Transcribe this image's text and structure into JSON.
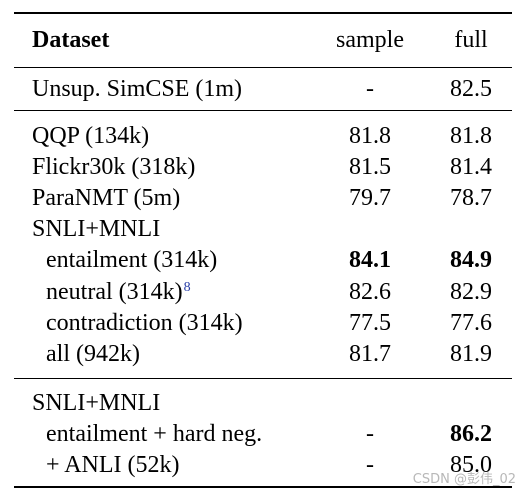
{
  "header": {
    "name": "Dataset",
    "sample": "sample",
    "full": "full"
  },
  "rows": [
    {
      "name": "Unsup. SimCSE (1m)",
      "sample": "-",
      "full": "82.5"
    },
    {
      "name": "QQP (134k)",
      "sample": "81.8",
      "full": "81.8"
    },
    {
      "name": "Flickr30k (318k)",
      "sample": "81.5",
      "full": "81.4"
    },
    {
      "name": "ParaNMT (5m)",
      "sample": "79.7",
      "full": "78.7"
    },
    {
      "name": "SNLI+MNLI",
      "sample": "",
      "full": ""
    },
    {
      "name": "entailment (314k)",
      "sample": "84.1",
      "full": "84.9"
    },
    {
      "name": "neutral (314k)",
      "footnote": "8",
      "sample": "82.6",
      "full": "82.9"
    },
    {
      "name": "contradiction (314k)",
      "sample": "77.5",
      "full": "77.6"
    },
    {
      "name": "all (942k)",
      "sample": "81.7",
      "full": "81.9"
    },
    {
      "name": "SNLI+MNLI",
      "sample": "",
      "full": ""
    },
    {
      "name": "entailment + hard neg.",
      "sample": "-",
      "full": "86.2"
    },
    {
      "name": "+ ANLI (52k)",
      "sample": "-",
      "full": "85.0"
    }
  ],
  "watermark": "CSDN @彭伟_02"
}
